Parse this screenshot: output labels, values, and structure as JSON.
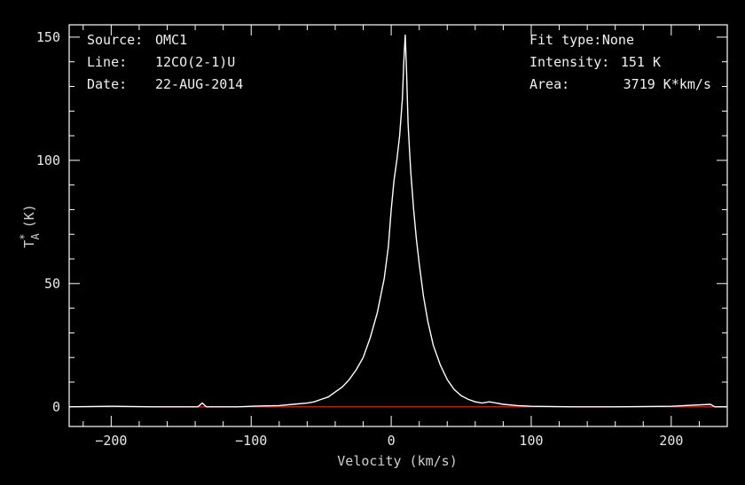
{
  "info": {
    "source_label": "Source:",
    "source_value": "OMC1",
    "line_label": "Line:",
    "line_value": "12CO(2-1)U",
    "date_label": "Date:",
    "date_value": "22-AUG-2014",
    "fit_label": "Fit type:",
    "fit_value": "None",
    "intensity_label": "Intensity:",
    "intensity_value": "151 K",
    "area_label": "Area:",
    "area_value": "3719 K*km/s"
  },
  "colors": {
    "background": "#000000",
    "frame": "#ffffff",
    "spectrum": "#ffffff",
    "baseline": "#cc2020"
  },
  "chart_data": {
    "type": "line",
    "title": "",
    "xlabel": "Velocity (km/s)",
    "ylabel_main": "T",
    "ylabel_super": "*",
    "ylabel_sub": "A",
    "ylabel_unit": "(K)",
    "xlim": [
      -230,
      240
    ],
    "ylim": [
      -8,
      155
    ],
    "xticks": [
      -200,
      -100,
      0,
      100,
      200
    ],
    "yticks": [
      0,
      50,
      100,
      150
    ],
    "baseline_y": 0,
    "grid": false,
    "series": [
      {
        "x": [
          -230,
          -200,
          -170,
          -138,
          -135,
          -132,
          -110,
          -95,
          -80,
          -70,
          -60,
          -55,
          -50,
          -45,
          -40,
          -35,
          -30,
          -25,
          -20,
          -15,
          -10,
          -5,
          -2,
          0,
          2,
          4,
          6,
          8,
          9,
          10,
          11,
          12,
          13,
          14,
          16,
          18,
          20,
          23,
          26,
          30,
          35,
          40,
          45,
          50,
          55,
          60,
          65,
          70,
          75,
          80,
          90,
          100,
          130,
          160,
          200,
          228,
          231,
          240
        ],
        "y": [
          0,
          0.2,
          0,
          0,
          1.5,
          0,
          0,
          0.3,
          0.5,
          1,
          1.5,
          2,
          3,
          4,
          6,
          8,
          11,
          15,
          20,
          28,
          38,
          52,
          65,
          80,
          92,
          100,
          110,
          125,
          140,
          151,
          135,
          115,
          105,
          95,
          80,
          68,
          58,
          45,
          35,
          25,
          17,
          11,
          7,
          4.5,
          3,
          2,
          1.5,
          2,
          1.5,
          1,
          0.5,
          0.2,
          0,
          0,
          0.2,
          1,
          0,
          0
        ]
      }
    ]
  }
}
